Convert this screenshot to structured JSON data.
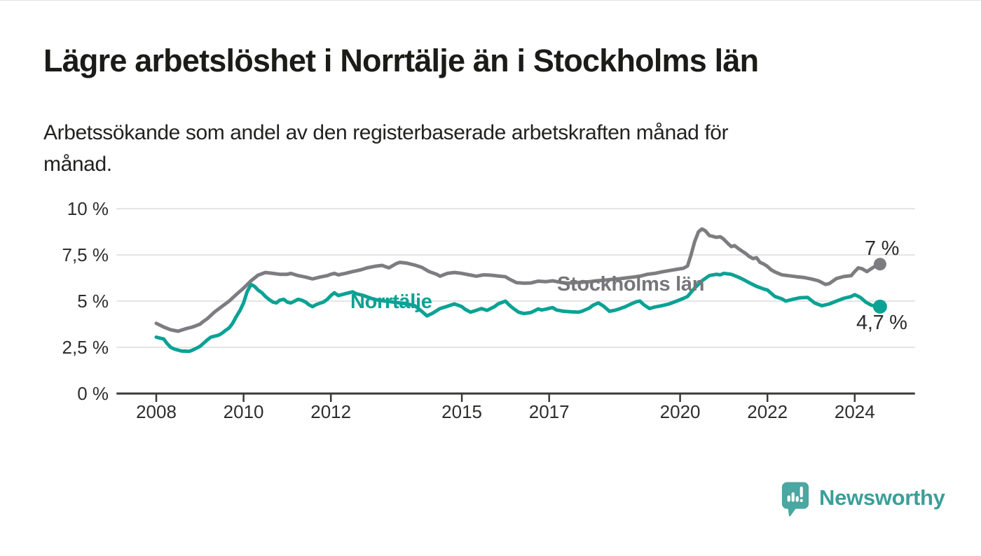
{
  "page": {
    "title": "Lägre arbetslöshet i Norrtälje än i Stockholms län",
    "subtitle_line1": "Arbetssökande som andel av den registerbaserade arbetskraften månad för",
    "subtitle_line2": "månad."
  },
  "branding": {
    "logo_text": "Newsworthy",
    "logo_icon": "speech-bubble-bar-chart-icon",
    "icon_color": "#4aa7a1",
    "text_color": "#3b9f99"
  },
  "chart_data": {
    "type": "line",
    "title": "Lägre arbetslöshet i Norrtälje än i Stockholms län",
    "xlabel": "",
    "ylabel": "",
    "grid": "horizontal-only",
    "style": {
      "grid_color": "#e4e4e4",
      "axis_color": "#3a3a38",
      "tick_label_color": "#2e2e2c"
    },
    "x_axis": {
      "range": [
        2007.09,
        2025.38
      ],
      "ticks": [
        2008,
        2010,
        2012,
        2015,
        2017,
        2020,
        2022,
        2024
      ],
      "labels": [
        "2008",
        "2010",
        "2012",
        "2015",
        "2017",
        "2020",
        "2022",
        "2024"
      ]
    },
    "y_axis": {
      "range": [
        0,
        10
      ],
      "ticks": [
        0,
        2.5,
        5,
        7.5,
        10
      ],
      "labels": [
        "0 %",
        "2,5 %",
        "5 %",
        "7,5 %",
        "10 %"
      ]
    },
    "series": [
      {
        "name": "Stockholms län",
        "color": "#7d7d81",
        "end_label": "7 %",
        "end_value": 7.0,
        "dot_radius": 9,
        "points": [
          [
            2008.0,
            3.8
          ],
          [
            2008.17,
            3.6
          ],
          [
            2008.33,
            3.45
          ],
          [
            2008.5,
            3.37
          ],
          [
            2008.67,
            3.5
          ],
          [
            2008.83,
            3.6
          ],
          [
            2009.0,
            3.75
          ],
          [
            2009.08,
            3.9
          ],
          [
            2009.17,
            4.05
          ],
          [
            2009.33,
            4.4
          ],
          [
            2009.5,
            4.7
          ],
          [
            2009.67,
            5.0
          ],
          [
            2009.83,
            5.35
          ],
          [
            2010.0,
            5.7
          ],
          [
            2010.17,
            6.1
          ],
          [
            2010.33,
            6.4
          ],
          [
            2010.5,
            6.55
          ],
          [
            2010.67,
            6.5
          ],
          [
            2010.83,
            6.45
          ],
          [
            2011.0,
            6.45
          ],
          [
            2011.08,
            6.5
          ],
          [
            2011.25,
            6.38
          ],
          [
            2011.42,
            6.3
          ],
          [
            2011.58,
            6.2
          ],
          [
            2011.75,
            6.3
          ],
          [
            2011.92,
            6.38
          ],
          [
            2012.0,
            6.45
          ],
          [
            2012.08,
            6.5
          ],
          [
            2012.17,
            6.42
          ],
          [
            2012.33,
            6.5
          ],
          [
            2012.5,
            6.6
          ],
          [
            2012.67,
            6.68
          ],
          [
            2012.83,
            6.8
          ],
          [
            2013.0,
            6.88
          ],
          [
            2013.17,
            6.93
          ],
          [
            2013.33,
            6.8
          ],
          [
            2013.5,
            7.03
          ],
          [
            2013.58,
            7.1
          ],
          [
            2013.75,
            7.05
          ],
          [
            2013.92,
            6.95
          ],
          [
            2014.08,
            6.83
          ],
          [
            2014.25,
            6.6
          ],
          [
            2014.42,
            6.45
          ],
          [
            2014.5,
            6.35
          ],
          [
            2014.67,
            6.5
          ],
          [
            2014.83,
            6.55
          ],
          [
            2015.0,
            6.5
          ],
          [
            2015.17,
            6.42
          ],
          [
            2015.33,
            6.35
          ],
          [
            2015.5,
            6.42
          ],
          [
            2015.67,
            6.4
          ],
          [
            2015.83,
            6.36
          ],
          [
            2016.0,
            6.32
          ],
          [
            2016.08,
            6.2
          ],
          [
            2016.25,
            6.0
          ],
          [
            2016.42,
            5.97
          ],
          [
            2016.58,
            5.98
          ],
          [
            2016.75,
            6.08
          ],
          [
            2016.92,
            6.05
          ],
          [
            2017.08,
            6.1
          ],
          [
            2017.25,
            6.02
          ],
          [
            2017.42,
            5.97
          ],
          [
            2017.58,
            6.0
          ],
          [
            2017.75,
            6.02
          ],
          [
            2017.92,
            6.05
          ],
          [
            2018.08,
            6.1
          ],
          [
            2018.25,
            6.13
          ],
          [
            2018.42,
            6.17
          ],
          [
            2018.58,
            6.2
          ],
          [
            2018.75,
            6.25
          ],
          [
            2018.92,
            6.3
          ],
          [
            2019.08,
            6.35
          ],
          [
            2019.25,
            6.45
          ],
          [
            2019.42,
            6.5
          ],
          [
            2019.58,
            6.58
          ],
          [
            2019.75,
            6.65
          ],
          [
            2019.92,
            6.72
          ],
          [
            2020.08,
            6.78
          ],
          [
            2020.17,
            6.9
          ],
          [
            2020.25,
            7.5
          ],
          [
            2020.33,
            8.2
          ],
          [
            2020.42,
            8.75
          ],
          [
            2020.5,
            8.9
          ],
          [
            2020.58,
            8.8
          ],
          [
            2020.67,
            8.55
          ],
          [
            2020.75,
            8.5
          ],
          [
            2020.83,
            8.45
          ],
          [
            2020.92,
            8.48
          ],
          [
            2021.0,
            8.35
          ],
          [
            2021.08,
            8.15
          ],
          [
            2021.17,
            7.95
          ],
          [
            2021.25,
            8.0
          ],
          [
            2021.33,
            7.85
          ],
          [
            2021.42,
            7.7
          ],
          [
            2021.5,
            7.58
          ],
          [
            2021.58,
            7.42
          ],
          [
            2021.67,
            7.3
          ],
          [
            2021.75,
            7.35
          ],
          [
            2021.83,
            7.1
          ],
          [
            2021.92,
            7.0
          ],
          [
            2022.0,
            6.88
          ],
          [
            2022.08,
            6.7
          ],
          [
            2022.17,
            6.58
          ],
          [
            2022.33,
            6.42
          ],
          [
            2022.5,
            6.37
          ],
          [
            2022.67,
            6.32
          ],
          [
            2022.83,
            6.28
          ],
          [
            2023.0,
            6.2
          ],
          [
            2023.17,
            6.1
          ],
          [
            2023.33,
            5.9
          ],
          [
            2023.42,
            5.95
          ],
          [
            2023.58,
            6.22
          ],
          [
            2023.75,
            6.33
          ],
          [
            2023.92,
            6.38
          ],
          [
            2024.0,
            6.6
          ],
          [
            2024.08,
            6.8
          ],
          [
            2024.17,
            6.75
          ],
          [
            2024.28,
            6.6
          ],
          [
            2024.44,
            6.85
          ],
          [
            2024.58,
            7.0
          ]
        ]
      },
      {
        "name": "Norrtälje",
        "color": "#0ba294",
        "end_label": "4,7 %",
        "end_value": 4.7,
        "dot_radius": 10,
        "points": [
          [
            2008.0,
            3.05
          ],
          [
            2008.08,
            3.0
          ],
          [
            2008.17,
            2.95
          ],
          [
            2008.25,
            2.7
          ],
          [
            2008.33,
            2.5
          ],
          [
            2008.42,
            2.4
          ],
          [
            2008.58,
            2.3
          ],
          [
            2008.75,
            2.28
          ],
          [
            2008.83,
            2.35
          ],
          [
            2008.92,
            2.45
          ],
          [
            2009.0,
            2.55
          ],
          [
            2009.17,
            2.9
          ],
          [
            2009.25,
            3.05
          ],
          [
            2009.33,
            3.1
          ],
          [
            2009.42,
            3.15
          ],
          [
            2009.5,
            3.25
          ],
          [
            2009.58,
            3.4
          ],
          [
            2009.67,
            3.55
          ],
          [
            2009.75,
            3.8
          ],
          [
            2009.83,
            4.15
          ],
          [
            2009.92,
            4.5
          ],
          [
            2010.0,
            4.9
          ],
          [
            2010.08,
            5.5
          ],
          [
            2010.17,
            5.9
          ],
          [
            2010.25,
            5.8
          ],
          [
            2010.33,
            5.6
          ],
          [
            2010.42,
            5.45
          ],
          [
            2010.5,
            5.25
          ],
          [
            2010.58,
            5.1
          ],
          [
            2010.67,
            4.95
          ],
          [
            2010.75,
            4.9
          ],
          [
            2010.83,
            5.05
          ],
          [
            2010.92,
            5.1
          ],
          [
            2011.0,
            4.95
          ],
          [
            2011.08,
            4.9
          ],
          [
            2011.17,
            5.0
          ],
          [
            2011.25,
            5.1
          ],
          [
            2011.33,
            5.05
          ],
          [
            2011.42,
            4.95
          ],
          [
            2011.5,
            4.8
          ],
          [
            2011.58,
            4.7
          ],
          [
            2011.67,
            4.82
          ],
          [
            2011.83,
            4.95
          ],
          [
            2011.92,
            5.1
          ],
          [
            2012.0,
            5.3
          ],
          [
            2012.08,
            5.45
          ],
          [
            2012.17,
            5.3
          ],
          [
            2012.33,
            5.4
          ],
          [
            2012.5,
            5.5
          ],
          [
            2012.58,
            5.4
          ],
          [
            2012.75,
            5.3
          ],
          [
            2012.92,
            5.15
          ],
          [
            2013.08,
            5.05
          ],
          [
            2013.25,
            5.0
          ],
          [
            2013.42,
            4.95
          ],
          [
            2013.58,
            4.9
          ],
          [
            2013.75,
            4.85
          ],
          [
            2013.92,
            4.75
          ],
          [
            2014.08,
            4.45
          ],
          [
            2014.2,
            4.2
          ],
          [
            2014.33,
            4.35
          ],
          [
            2014.5,
            4.6
          ],
          [
            2014.67,
            4.72
          ],
          [
            2014.83,
            4.85
          ],
          [
            2015.0,
            4.7
          ],
          [
            2015.08,
            4.55
          ],
          [
            2015.2,
            4.4
          ],
          [
            2015.33,
            4.5
          ],
          [
            2015.45,
            4.6
          ],
          [
            2015.58,
            4.5
          ],
          [
            2015.75,
            4.7
          ],
          [
            2015.83,
            4.85
          ],
          [
            2016.0,
            5.0
          ],
          [
            2016.08,
            4.8
          ],
          [
            2016.17,
            4.62
          ],
          [
            2016.3,
            4.4
          ],
          [
            2016.42,
            4.33
          ],
          [
            2016.58,
            4.38
          ],
          [
            2016.67,
            4.48
          ],
          [
            2016.75,
            4.58
          ],
          [
            2016.83,
            4.52
          ],
          [
            2016.92,
            4.56
          ],
          [
            2017.08,
            4.65
          ],
          [
            2017.17,
            4.52
          ],
          [
            2017.33,
            4.45
          ],
          [
            2017.5,
            4.42
          ],
          [
            2017.67,
            4.4
          ],
          [
            2017.75,
            4.45
          ],
          [
            2017.92,
            4.62
          ],
          [
            2018.0,
            4.77
          ],
          [
            2018.13,
            4.9
          ],
          [
            2018.25,
            4.72
          ],
          [
            2018.38,
            4.45
          ],
          [
            2018.5,
            4.5
          ],
          [
            2018.63,
            4.6
          ],
          [
            2018.75,
            4.7
          ],
          [
            2018.88,
            4.85
          ],
          [
            2019.0,
            4.97
          ],
          [
            2019.08,
            5.0
          ],
          [
            2019.17,
            4.8
          ],
          [
            2019.3,
            4.6
          ],
          [
            2019.42,
            4.68
          ],
          [
            2019.58,
            4.75
          ],
          [
            2019.75,
            4.85
          ],
          [
            2019.92,
            5.0
          ],
          [
            2020.08,
            5.15
          ],
          [
            2020.17,
            5.25
          ],
          [
            2020.33,
            5.7
          ],
          [
            2020.5,
            6.1
          ],
          [
            2020.67,
            6.38
          ],
          [
            2020.83,
            6.45
          ],
          [
            2020.92,
            6.42
          ],
          [
            2021.0,
            6.5
          ],
          [
            2021.17,
            6.45
          ],
          [
            2021.33,
            6.3
          ],
          [
            2021.42,
            6.2
          ],
          [
            2021.58,
            6.0
          ],
          [
            2021.75,
            5.8
          ],
          [
            2021.92,
            5.65
          ],
          [
            2022.0,
            5.6
          ],
          [
            2022.17,
            5.25
          ],
          [
            2022.33,
            5.12
          ],
          [
            2022.42,
            5.0
          ],
          [
            2022.58,
            5.1
          ],
          [
            2022.75,
            5.18
          ],
          [
            2022.92,
            5.2
          ],
          [
            2023.08,
            4.9
          ],
          [
            2023.25,
            4.75
          ],
          [
            2023.42,
            4.85
          ],
          [
            2023.58,
            5.0
          ],
          [
            2023.75,
            5.15
          ],
          [
            2023.92,
            5.25
          ],
          [
            2024.0,
            5.35
          ],
          [
            2024.13,
            5.2
          ],
          [
            2024.25,
            4.95
          ],
          [
            2024.38,
            4.78
          ],
          [
            2024.5,
            4.72
          ],
          [
            2024.58,
            4.7
          ]
        ]
      }
    ]
  }
}
